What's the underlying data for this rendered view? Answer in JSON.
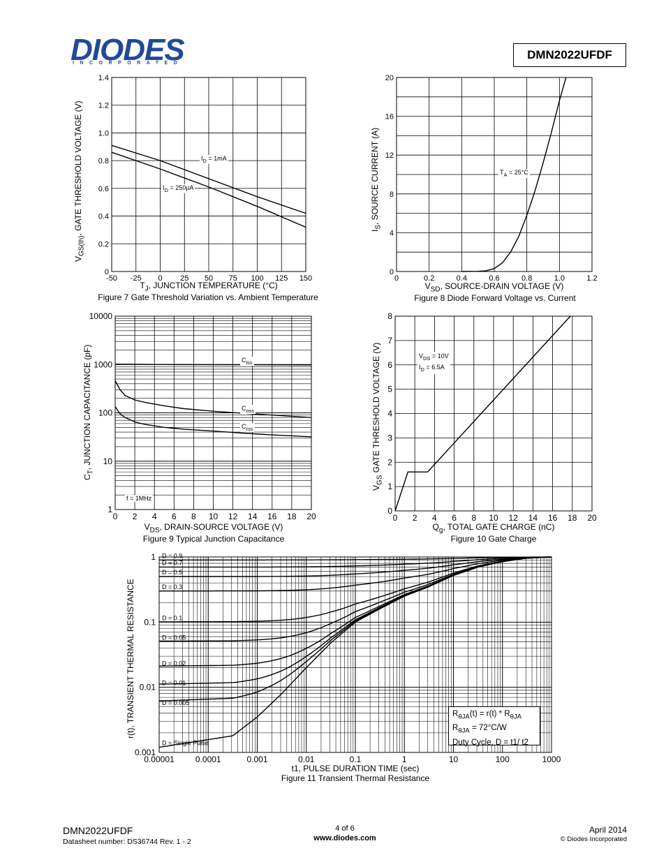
{
  "logo": {
    "brand": "DIODES",
    "sub": "INCORPORATED"
  },
  "header": {
    "part_number": "DMN2022UFDF"
  },
  "fig7": {
    "caption": "Figure 7 Gate Threshold Variation vs. Ambient Temperature",
    "xlabel": "T<sub>J</sub>, JUNCTION TEMPERATURE (°C)",
    "ylabel": "V<sub>GS(th)</sub>, GATE THRESHOLD VOLTAGE (V)",
    "annot1": "I<sub>D</sub> = 1mA",
    "annot2": "I<sub>D</sub> = 250μA"
  },
  "fig8": {
    "caption": "Figure 8 Diode Forward Voltage vs. Current",
    "xlabel": "V<sub>SD</sub>, SOURCE-DRAIN VOLTAGE (V)",
    "ylabel": "I<sub>S</sub>, SOURCE CURRENT (A)",
    "annot": "T<sub>A</sub> = 25°C"
  },
  "fig9": {
    "caption": "Figure 9 Typical Junction Capacitance",
    "xlabel": "V<sub>DS</sub>, DRAIN-SOURCE VOLTAGE (V)",
    "ylabel": "C<sub>T</sub>, JUNCTION CAPACITANCE (pF)",
    "ciss": "C<sub>iss</sub>",
    "coss": "C<sub>oss</sub>",
    "crss": "C<sub>rss</sub>",
    "freq": "f = 1MHz"
  },
  "fig10": {
    "caption": "Figure 10 Gate Charge",
    "xlabel": "Q<sub>g</sub>, TOTAL GATE CHARGE (nC)",
    "ylabel": "V<sub>GS</sub> GATE THRESHOLD VOLTAGE (V)",
    "annot1": "V<sub>DS</sub> = 10V",
    "annot2": "I<sub>D</sub> = 6.5A"
  },
  "fig11": {
    "caption": "Figure 11 Transient Thermal Resistance",
    "xlabel": "t1, PULSE DURATION TIME (sec)",
    "ylabel": "r(t), TRANSIENT THERMAL RESISTANCE",
    "legend1": "R<sub>θJA</sub>(t) = r(t) * R<sub>θJA</sub>",
    "legend2": "R<sub>θJA</sub> = 72°C/W",
    "legend3": "Duty Cycle, D = t1/ t2"
  },
  "chart_data": [
    {
      "type": "line",
      "title": "Figure 7 Gate Threshold Variation vs. Ambient Temperature",
      "xlabel": "TJ, JUNCTION TEMPERATURE (°C)",
      "ylabel": "VGS(th), GATE THRESHOLD VOLTAGE (V)",
      "xlim": [
        -50,
        150
      ],
      "ylim": [
        0,
        1.4
      ],
      "xticks": [
        "-50",
        "-25",
        "0",
        "25",
        "50",
        "75",
        "100",
        "125",
        "150"
      ],
      "yticks": [
        "0",
        "0.2",
        "0.4",
        "0.6",
        "0.8",
        "1.0",
        "1.2",
        "1.4"
      ],
      "series": [
        {
          "name": "ID = 1mA",
          "x": [
            -50,
            0,
            50,
            100,
            150
          ],
          "y": [
            0.91,
            0.8,
            0.67,
            0.54,
            0.42
          ]
        },
        {
          "name": "ID = 250μA",
          "x": [
            -50,
            0,
            50,
            100,
            150
          ],
          "y": [
            0.86,
            0.74,
            0.61,
            0.47,
            0.32
          ]
        }
      ]
    },
    {
      "type": "line",
      "title": "Figure 8 Diode Forward Voltage vs. Current",
      "xlabel": "VSD, SOURCE-DRAIN VOLTAGE (V)",
      "ylabel": "IS, SOURCE CURRENT (A)",
      "xlim": [
        0,
        1.2
      ],
      "ylim": [
        0,
        20
      ],
      "xticks": [
        "0",
        "0.2",
        "0.4",
        "0.6",
        "0.8",
        "1.0",
        "1.2"
      ],
      "yticks": [
        "0",
        "4",
        "8",
        "12",
        "16",
        "20"
      ],
      "annotation": "TA = 25°C",
      "series": [
        {
          "name": "TA = 25°C",
          "x": [
            0.4,
            0.5,
            0.55,
            0.6,
            0.65,
            0.7,
            0.75,
            0.8,
            0.85,
            0.9,
            0.95,
            1.0,
            1.04
          ],
          "y": [
            0,
            0.02,
            0.08,
            0.3,
            0.9,
            2.0,
            3.6,
            5.8,
            8.3,
            11.2,
            14.3,
            17.6,
            20
          ]
        }
      ]
    },
    {
      "type": "line",
      "title": "Figure 9 Typical Junction Capacitance",
      "xlabel": "VDS, DRAIN-SOURCE VOLTAGE (V)",
      "ylabel": "CT, JUNCTION CAPACITANCE (pF)",
      "xlim": [
        0,
        20
      ],
      "ylim": [
        1,
        10000
      ],
      "yscale": "log",
      "xticks": [
        "0",
        "2",
        "4",
        "6",
        "8",
        "10",
        "12",
        "14",
        "16",
        "18",
        "20"
      ],
      "yticks": [
        "1",
        "10",
        "100",
        "1000",
        "10000"
      ],
      "annotation": "f = 1MHz",
      "series": [
        {
          "name": "Ciss",
          "x": [
            0,
            2,
            5,
            10,
            15,
            20
          ],
          "y": [
            1020,
            1010,
            1000,
            990,
            985,
            980
          ]
        },
        {
          "name": "Coss",
          "x": [
            0,
            0.5,
            1,
            2,
            3,
            5,
            7,
            10,
            13,
            16,
            20
          ],
          "y": [
            460,
            300,
            230,
            185,
            165,
            140,
            122,
            108,
            98,
            90,
            80
          ]
        },
        {
          "name": "Crss",
          "x": [
            0,
            0.5,
            1,
            2,
            3,
            5,
            7,
            10,
            13,
            16,
            20
          ],
          "y": [
            135,
            95,
            80,
            65,
            58,
            50,
            46,
            42,
            38,
            35,
            32
          ]
        }
      ]
    },
    {
      "type": "line",
      "title": "Figure 10 Gate Charge",
      "xlabel": "Qg, TOTAL GATE CHARGE (nC)",
      "ylabel": "VGS GATE THRESHOLD VOLTAGE (V)",
      "xlim": [
        0,
        20
      ],
      "ylim": [
        0,
        8
      ],
      "xticks": [
        "0",
        "2",
        "4",
        "6",
        "8",
        "10",
        "12",
        "14",
        "16",
        "18",
        "20"
      ],
      "yticks": [
        "0",
        "1",
        "2",
        "3",
        "4",
        "5",
        "6",
        "7",
        "8"
      ],
      "series": [
        {
          "name": "VDS = 10V, ID = 6.5A",
          "x": [
            0,
            1.3,
            3.3,
            17.8
          ],
          "y": [
            0,
            1.6,
            1.6,
            8.0
          ]
        }
      ]
    },
    {
      "type": "line",
      "title": "Figure 11 Transient Thermal Resistance",
      "xlabel": "t1, PULSE DURATION TIME (sec)",
      "ylabel": "r(t), TRANSIENT THERMAL RESISTANCE",
      "xscale": "log",
      "yscale": "log",
      "xlim": [
        1e-05,
        1000
      ],
      "ylim": [
        0.001,
        1
      ],
      "xticks": [
        "0.00001",
        "0.0001",
        "0.001",
        "0.01",
        "0.1",
        "1",
        "10",
        "100",
        "1000"
      ],
      "yticks": [
        "0.001",
        "0.01",
        "0.1",
        "1"
      ],
      "series": [
        {
          "name": "D = 0.9",
          "floor": 0.9
        },
        {
          "name": "D = 0.7",
          "floor": 0.7
        },
        {
          "name": "D = 0.5",
          "floor": 0.5
        },
        {
          "name": "D = 0.3",
          "floor": 0.3
        },
        {
          "name": "D = 0.1",
          "floor": 0.1
        },
        {
          "name": "D = 0.05",
          "floor": 0.05
        },
        {
          "name": "D = 0.02",
          "floor": 0.02
        },
        {
          "name": "D = 0.01",
          "floor": 0.01
        },
        {
          "name": "D = 0.005",
          "floor": 0.005
        },
        {
          "name": "D = Single Pulse",
          "floor": 0.0012
        }
      ]
    }
  ],
  "footer": {
    "part": "DMN2022UFDF",
    "datasheet": "Datasheet number: DS36744 Rev. 1 - 2",
    "page": "4 of 6",
    "url": "www.diodes.com",
    "date": "April 2014",
    "copyright": "© Diodes Incorporated"
  }
}
